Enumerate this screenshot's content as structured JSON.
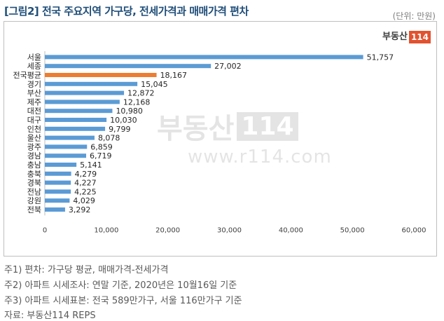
{
  "title": "[그림2] 전국 주요지역 가구당, 전세가격과 매매가격 편차",
  "unit_label": "(단위: 만원)",
  "logo": {
    "text": "부동산",
    "number": "114"
  },
  "watermark": {
    "text": "부동산",
    "number": "114",
    "url": "www.r114.com"
  },
  "notes": {
    "note1": "주1) 편차: 가구당 평균, 매매가격-전세가격",
    "note2": "주2) 아파트 시세조사: 연말 기준, 2020년은 10월16일 기준",
    "note3": "주3) 아파트 시세표본: 전국 589만가구, 서울 116만가구 기준",
    "source": "자료: 부동산114 REPS"
  },
  "colors": {
    "bar": "#5b9bd5",
    "highlight": "#ed7d31",
    "title": "#1f4e79",
    "logo_accent": "#e2522f"
  },
  "chart_data": {
    "type": "bar",
    "orientation": "horizontal",
    "title": "",
    "xlabel": "",
    "ylabel": "",
    "xlim": [
      0,
      60000
    ],
    "xticks": [
      0,
      10000,
      20000,
      30000,
      40000,
      50000,
      60000
    ],
    "xtick_labels": [
      "0",
      "10,000",
      "20,000",
      "30,000",
      "40,000",
      "50,000",
      "60,000"
    ],
    "grid": false,
    "highlight_category": "전국평균",
    "categories": [
      "서울",
      "세종",
      "전국평균",
      "경기",
      "부산",
      "제주",
      "대전",
      "대구",
      "인천",
      "울산",
      "광주",
      "경남",
      "충남",
      "충북",
      "경북",
      "전남",
      "강원",
      "전북"
    ],
    "values": [
      51757,
      27002,
      18167,
      15045,
      12872,
      12168,
      10980,
      10030,
      9799,
      8078,
      6859,
      6719,
      5141,
      4279,
      4227,
      4225,
      4029,
      3292
    ],
    "value_labels": [
      "51,757",
      "27,002",
      "18,167",
      "15,045",
      "12,872",
      "12,168",
      "10,980",
      "10,030",
      "9,799",
      "8,078",
      "6,859",
      "6,719",
      "5,141",
      "4,279",
      "4,227",
      "4,225",
      "4,029",
      "3,292"
    ]
  }
}
